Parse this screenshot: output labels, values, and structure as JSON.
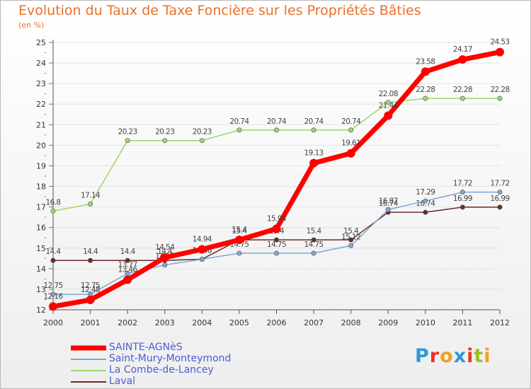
{
  "header": {
    "title": "Evolution du Taux de Taxe Foncière sur les Propriétés Bâties",
    "unit": "(en %)"
  },
  "logo": {
    "text": "Proxiti",
    "letters": [
      "P",
      "r",
      "o",
      "x",
      "i",
      "t",
      "i"
    ],
    "colors": [
      "#2a9ad8",
      "#e8342a",
      "#f0a020",
      "#2a9ad8",
      "#e8342a",
      "#9ac020",
      "#f0a020"
    ]
  },
  "chart_data": {
    "type": "line",
    "x": [
      2000,
      2001,
      2002,
      2003,
      2004,
      2005,
      2006,
      2007,
      2008,
      2009,
      2010,
      2011,
      2012
    ],
    "ylim": [
      12,
      25
    ],
    "yticks": [
      12,
      13,
      14,
      15,
      16,
      17,
      18,
      19,
      20,
      21,
      22,
      23,
      24,
      25
    ],
    "legend_position": "bottom-left",
    "series": [
      {
        "name": "Laval",
        "color": "#6b2a2a",
        "width": 1.5,
        "values": [
          14.4,
          14.4,
          14.4,
          14.4,
          14.46,
          15.4,
          15.4,
          15.4,
          15.4,
          16.74,
          16.74,
          16.99,
          16.99
        ],
        "labels": [
          "14.4",
          "14.4",
          "14.4",
          "14.4",
          "14.46",
          "15.4",
          "15.4",
          "15.4",
          "15.4",
          "16.74",
          "16.74",
          "16.99",
          "16.99"
        ]
      },
      {
        "name": "Saint-Mury-Monteymond",
        "color": "#7fa6d4",
        "width": 1.5,
        "values": [
          12.75,
          12.75,
          13.77,
          14.18,
          14.46,
          14.75,
          14.75,
          14.75,
          15.12,
          16.87,
          17.29,
          17.72,
          17.72
        ],
        "labels": [
          "12.75",
          "12.75",
          "13.77",
          "14.18",
          "14.46",
          "14.75",
          "14.75",
          "14.75",
          "15.12",
          "16.87",
          "17.29",
          "17.72",
          "17.72"
        ]
      },
      {
        "name": "La Combe-de-Lancey",
        "color": "#9ad86a",
        "width": 1.5,
        "values": [
          16.8,
          17.14,
          20.23,
          20.23,
          20.23,
          20.74,
          20.74,
          20.74,
          20.74,
          22.08,
          22.28,
          22.28,
          22.28
        ],
        "labels": [
          "16.8",
          "17.14",
          "20.23",
          "20.23",
          "20.23",
          "20.74",
          "20.74",
          "20.74",
          "20.74",
          "22.08",
          "22.28",
          "22.28",
          "22.28"
        ]
      },
      {
        "name": "SAINTE-AGNèS",
        "color": "#ff0000",
        "width": 7,
        "values": [
          12.16,
          12.48,
          13.46,
          14.54,
          14.94,
          15.4,
          15.94,
          19.13,
          19.61,
          21.44,
          23.58,
          24.17,
          24.53
        ],
        "labels": [
          "12.16",
          "12.48",
          "13.46",
          "14.54",
          "14.94",
          "15.4",
          "15.94",
          "19.13",
          "19.61",
          "21.44",
          "23.58",
          "24.17",
          "24.53"
        ]
      }
    ],
    "legend": [
      "SAINTE-AGNèS",
      "Saint-Mury-Monteymond",
      "La Combe-de-Lancey",
      "Laval"
    ]
  }
}
